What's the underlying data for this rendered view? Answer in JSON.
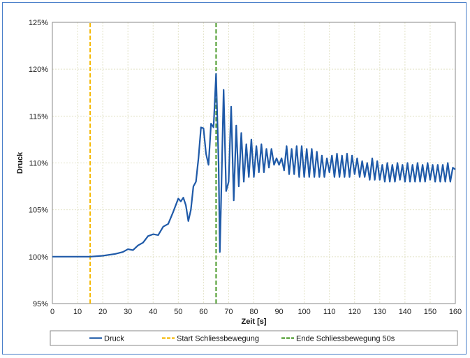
{
  "chart_data": {
    "type": "line",
    "title": "",
    "xlabel": "Zeit [s]",
    "ylabel": "Druck",
    "xlim": [
      0,
      160
    ],
    "ylim": [
      95,
      125
    ],
    "x_ticks": [
      0,
      10,
      20,
      30,
      40,
      50,
      60,
      70,
      80,
      90,
      100,
      110,
      120,
      130,
      140,
      150,
      160
    ],
    "y_ticks": [
      95,
      100,
      105,
      110,
      115,
      120,
      125
    ],
    "y_tick_labels": [
      "95%",
      "100%",
      "105%",
      "110%",
      "115%",
      "120%",
      "125%"
    ],
    "grid": true,
    "legend_position": "bottom",
    "series": [
      {
        "name": "Druck",
        "color": "#1f5aa8",
        "style": "solid",
        "x": [
          0,
          10,
          15,
          20,
          25,
          28,
          30,
          32,
          34,
          36,
          38,
          40,
          42,
          44,
          46,
          48,
          50,
          51,
          52,
          53,
          54,
          55,
          56,
          57,
          58,
          59,
          60,
          61,
          62,
          63,
          64,
          65,
          66,
          66.5,
          67,
          68,
          69,
          70,
          71,
          72,
          73,
          74,
          75,
          76,
          77,
          78,
          79,
          80,
          81,
          82,
          83,
          84,
          85,
          86,
          87,
          88,
          89,
          90,
          91,
          92,
          93,
          94,
          95,
          96,
          97,
          98,
          99,
          100,
          101,
          102,
          103,
          104,
          105,
          106,
          107,
          108,
          109,
          110,
          111,
          112,
          113,
          114,
          115,
          116,
          117,
          118,
          119,
          120,
          121,
          122,
          123,
          124,
          125,
          126,
          127,
          128,
          129,
          130,
          131,
          132,
          133,
          134,
          135,
          136,
          137,
          138,
          139,
          140,
          141,
          142,
          143,
          144,
          145,
          146,
          147,
          148,
          149,
          150,
          151,
          152,
          153,
          154,
          155,
          156,
          157,
          158,
          159,
          160
        ],
        "values": [
          100.0,
          100.0,
          100.0,
          100.1,
          100.3,
          100.5,
          100.8,
          100.7,
          101.2,
          101.5,
          102.2,
          102.4,
          102.3,
          103.2,
          103.5,
          104.8,
          106.2,
          105.9,
          106.3,
          105.5,
          103.8,
          105.0,
          107.5,
          108.0,
          110.5,
          113.8,
          113.7,
          111.0,
          109.8,
          114.2,
          113.8,
          119.5,
          110.0,
          100.5,
          106.0,
          117.8,
          107.0,
          108.0,
          116.0,
          106.0,
          114.0,
          107.5,
          113.2,
          108.0,
          112.0,
          108.5,
          112.5,
          108.5,
          111.8,
          109.0,
          112.0,
          109.0,
          111.5,
          109.5,
          111.5,
          109.8,
          110.5,
          109.8,
          110.5,
          109.2,
          111.8,
          108.8,
          111.5,
          108.8,
          111.8,
          108.5,
          111.8,
          108.5,
          111.5,
          108.5,
          111.5,
          108.5,
          111.2,
          108.5,
          110.8,
          108.5,
          110.5,
          109.0,
          110.8,
          108.5,
          111.0,
          108.5,
          110.8,
          108.5,
          111.0,
          108.5,
          110.8,
          108.8,
          110.5,
          108.5,
          110.2,
          108.5,
          110.0,
          108.2,
          110.5,
          108.2,
          110.2,
          108.2,
          109.8,
          108.0,
          110.0,
          108.0,
          109.8,
          108.0,
          110.0,
          108.2,
          109.8,
          108.0,
          110.0,
          108.0,
          109.8,
          108.0,
          110.0,
          108.0,
          109.8,
          108.0,
          110.0,
          108.2,
          109.8,
          108.0,
          109.8,
          108.0,
          109.8,
          108.0,
          110.0,
          108.0,
          109.5,
          109.3
        ]
      },
      {
        "name": "Start Schliessbewegung",
        "color": "#f5b800",
        "style": "dashed",
        "x": [
          15,
          15
        ],
        "values": [
          95,
          125
        ]
      },
      {
        "name": "Ende Schliessbewegung 50s",
        "color": "#4a9a2a",
        "style": "dashed",
        "x": [
          65,
          65
        ],
        "values": [
          95,
          125
        ]
      }
    ]
  }
}
